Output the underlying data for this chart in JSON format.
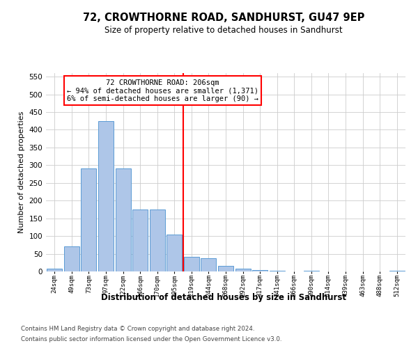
{
  "title1": "72, CROWTHORNE ROAD, SANDHURST, GU47 9EP",
  "title2": "Size of property relative to detached houses in Sandhurst",
  "xlabel": "Distribution of detached houses by size in Sandhurst",
  "ylabel": "Number of detached properties",
  "footer1": "Contains HM Land Registry data © Crown copyright and database right 2024.",
  "footer2": "Contains public sector information licensed under the Open Government Licence v3.0.",
  "bin_labels": [
    "24sqm",
    "49sqm",
    "73sqm",
    "97sqm",
    "122sqm",
    "146sqm",
    "170sqm",
    "195sqm",
    "219sqm",
    "244sqm",
    "268sqm",
    "292sqm",
    "317sqm",
    "341sqm",
    "366sqm",
    "390sqm",
    "414sqm",
    "439sqm",
    "463sqm",
    "488sqm",
    "512sqm"
  ],
  "bar_values": [
    7,
    70,
    290,
    425,
    290,
    175,
    175,
    105,
    42,
    38,
    15,
    7,
    3,
    1,
    0,
    2,
    0,
    0,
    0,
    0,
    2
  ],
  "bar_color": "#aec6e8",
  "bar_edgecolor": "#5b9bd5",
  "vline_x": 7.5,
  "vline_color": "red",
  "annotation_title": "72 CROWTHORNE ROAD: 206sqm",
  "annotation_line1": "← 94% of detached houses are smaller (1,371)",
  "annotation_line2": "6% of semi-detached houses are larger (90) →",
  "annotation_box_color": "white",
  "annotation_box_edgecolor": "red",
  "ylim": [
    0,
    560
  ],
  "yticks": [
    0,
    50,
    100,
    150,
    200,
    250,
    300,
    350,
    400,
    450,
    500,
    550
  ],
  "background_color": "#ffffff",
  "grid_color": "#cccccc"
}
